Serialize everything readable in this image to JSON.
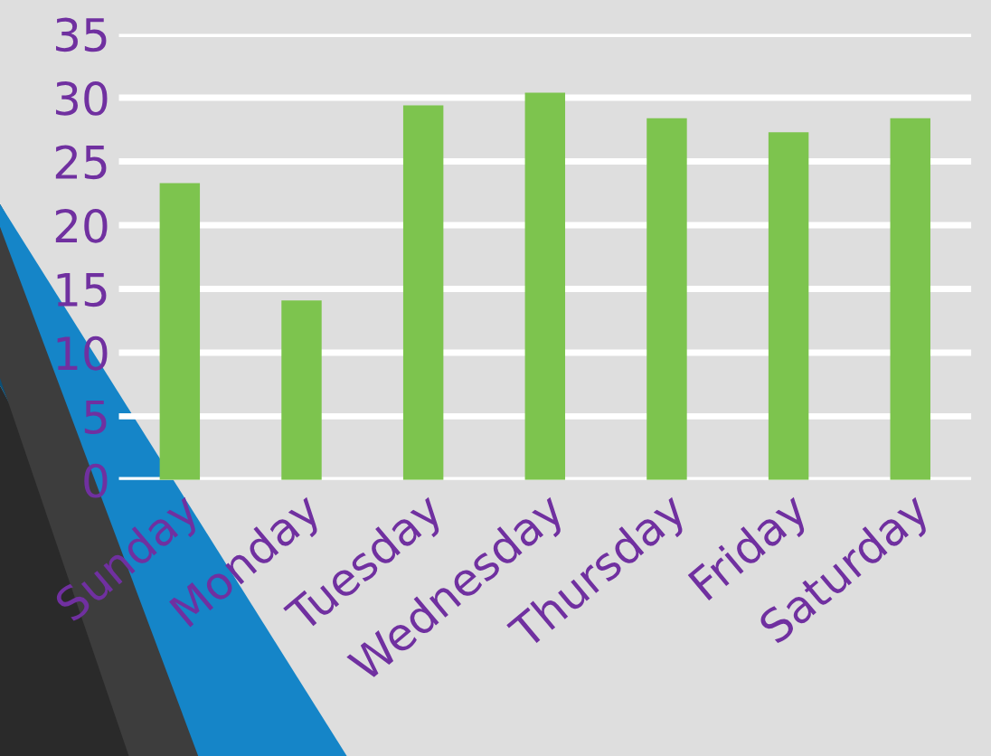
{
  "chart_data": {
    "type": "bar",
    "categories": [
      "Sunday",
      "Monday",
      "Tuesday",
      "Wednesday",
      "Thursday",
      "Friday",
      "Saturday"
    ],
    "values": [
      23.3,
      14.1,
      29.4,
      30.4,
      28.4,
      27.3,
      28.4
    ],
    "color": "#7dc44e",
    "ylim": [
      0,
      35
    ],
    "yticks": [
      0,
      5,
      10,
      15,
      20,
      25,
      30,
      35
    ],
    "grid": "y"
  }
}
